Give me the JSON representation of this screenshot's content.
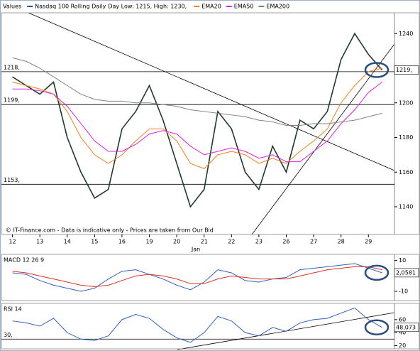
{
  "chart_data": [
    {
      "type": "line",
      "label": "Values",
      "subtitle": "Day Low: 1215, High: 1230,",
      "note": "© IT-Finance.com - Data is indicative only - Prices are taken from Our Bid",
      "x": [
        0,
        0.5,
        1,
        1.5,
        2,
        2.5,
        3,
        3.5,
        4,
        4.5,
        5,
        5.5,
        6,
        6.5,
        7,
        7.5,
        8,
        8.5,
        9,
        9.5,
        10,
        10.5,
        11,
        11.5,
        12,
        12.5,
        13,
        13.5
      ],
      "xlim": [
        -0.3,
        13.9
      ],
      "xticks": [
        {
          "value": 0,
          "label": "12"
        },
        {
          "value": 1,
          "label": "13"
        },
        {
          "value": 2,
          "label": "14"
        },
        {
          "value": 3,
          "label": "15"
        },
        {
          "value": 4,
          "label": "16"
        },
        {
          "value": 5,
          "label": "19"
        },
        {
          "value": 6,
          "label": "20"
        },
        {
          "value": 7,
          "label": "21"
        },
        {
          "value": 8,
          "label": "22"
        },
        {
          "value": 9,
          "label": "23"
        },
        {
          "value": 10,
          "label": "26"
        },
        {
          "value": 11,
          "label": "27"
        },
        {
          "value": 12,
          "label": "28"
        },
        {
          "value": 13,
          "label": "29"
        }
      ],
      "x_label": "Jan",
      "ylim": [
        1124,
        1252
      ],
      "yticks": [
        1140,
        1160,
        1180,
        1200,
        1220,
        1240
      ],
      "levels": [
        {
          "value": 1218,
          "label": "1218,"
        },
        {
          "value": 1199,
          "label": "1199,"
        },
        {
          "value": 1153,
          "label": "1153,"
        }
      ],
      "last": {
        "value": 1219,
        "label": "1219,"
      },
      "series": [
        {
          "name": "Nasdaq 100 Rolling Daily",
          "color": "#1f3a2a",
          "values": [
            1215,
            1210,
            1205,
            1212,
            1180,
            1160,
            1145,
            1150,
            1185,
            1195,
            1210,
            1190,
            1165,
            1140,
            1150,
            1195,
            1185,
            1160,
            1150,
            1175,
            1160,
            1190,
            1185,
            1195,
            1225,
            1240,
            1228,
            1219
          ]
        },
        {
          "name": "EMA20",
          "color": "#f08020",
          "values": [
            1212,
            1210,
            1208,
            1205,
            1195,
            1180,
            1170,
            1165,
            1170,
            1178,
            1185,
            1185,
            1178,
            1165,
            1162,
            1170,
            1172,
            1170,
            1165,
            1168,
            1165,
            1172,
            1178,
            1185,
            1200,
            1210,
            1218,
            1220
          ]
        },
        {
          "name": "EMA50",
          "color": "#e020e0",
          "values": [
            1208,
            1208,
            1207,
            1205,
            1198,
            1188,
            1178,
            1172,
            1172,
            1176,
            1182,
            1184,
            1182,
            1175,
            1170,
            1172,
            1174,
            1172,
            1168,
            1170,
            1166,
            1166,
            1172,
            1178,
            1188,
            1196,
            1206,
            1212
          ]
        },
        {
          "name": "EMA200",
          "color": "#808080",
          "values": [
            1226,
            1224,
            1220,
            1215,
            1210,
            1205,
            1202,
            1201,
            1201,
            1200,
            1200,
            1199,
            1198,
            1196,
            1195,
            1194,
            1193,
            1192,
            1190,
            1189,
            1187,
            1187,
            1188,
            1188,
            1189,
            1190,
            1192,
            1194
          ]
        }
      ]
    },
    {
      "type": "line",
      "title": "MACD 12 26 9",
      "ylim": [
        -16,
        14
      ],
      "yticks": [
        10,
        -10
      ],
      "last": {
        "value": 2.0581,
        "label": "2,0581"
      },
      "series": [
        {
          "color": "#3060c0",
          "values": [
            2,
            1,
            -3,
            -6,
            -8,
            -10,
            -8,
            -2,
            3,
            4,
            1,
            -2,
            -6,
            -9,
            -4,
            4,
            2,
            -3,
            -4,
            -2,
            -1,
            4,
            5,
            6,
            7,
            8,
            5,
            2
          ]
        },
        {
          "color": "#e03020",
          "values": [
            3,
            2,
            0,
            -2,
            -4,
            -6,
            -7,
            -6,
            -3,
            0,
            1,
            0,
            -2,
            -5,
            -5,
            -2,
            0,
            -1,
            -2,
            -2,
            -2,
            0,
            2,
            4,
            5,
            6,
            6,
            4
          ]
        }
      ]
    },
    {
      "type": "line",
      "title": "RSI 14",
      "ylim": [
        15,
        85
      ],
      "yticks": [
        60,
        40,
        20
      ],
      "levels": [
        {
          "value": 30,
          "label": "30,"
        }
      ],
      "last": {
        "value": 48.073,
        "label": "48,073"
      },
      "series": [
        {
          "color": "#3060c0",
          "values": [
            58,
            55,
            50,
            62,
            40,
            30,
            28,
            35,
            60,
            68,
            62,
            45,
            32,
            25,
            40,
            65,
            58,
            40,
            35,
            48,
            42,
            55,
            60,
            62,
            70,
            78,
            60,
            48
          ]
        }
      ]
    }
  ]
}
